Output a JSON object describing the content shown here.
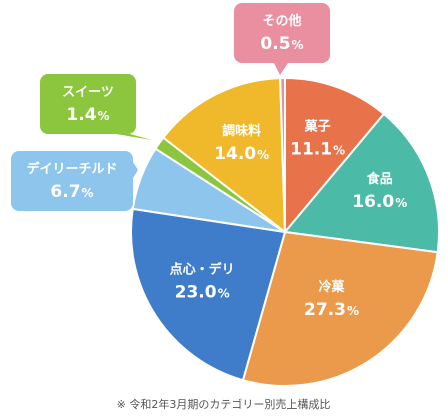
{
  "chart_data": {
    "type": "pie",
    "start": "top",
    "direction": "clockwise",
    "title": "",
    "slices": [
      {
        "name": "菓子",
        "value": 11.1,
        "value_label": "11.1",
        "unit": "%",
        "color": "#e8734a"
      },
      {
        "name": "食品",
        "value": 16.0,
        "value_label": "16.0",
        "unit": "%",
        "color": "#4bbaa6"
      },
      {
        "name": "冷菓",
        "value": 27.3,
        "value_label": "27.3",
        "unit": "%",
        "color": "#eb9a4b"
      },
      {
        "name": "点心・デリ",
        "value": 23.0,
        "value_label": "23.0",
        "unit": "%",
        "color": "#3f7cc9"
      },
      {
        "name": "デイリーチルド",
        "value": 6.7,
        "value_label": "6.7",
        "unit": "%",
        "color": "#8ec5ec"
      },
      {
        "name": "スイーツ",
        "value": 1.4,
        "value_label": "1.4",
        "unit": "%",
        "color": "#8cc63f"
      },
      {
        "name": "調味料",
        "value": 14.0,
        "value_label": "14.0",
        "unit": "%",
        "color": "#f0b92b"
      },
      {
        "name": "その他",
        "value": 0.5,
        "value_label": "0.5",
        "unit": "%",
        "color": "#e98fa0"
      }
    ],
    "footnote": "※ 令和2年3月期のカテゴリー別売上構成比"
  }
}
